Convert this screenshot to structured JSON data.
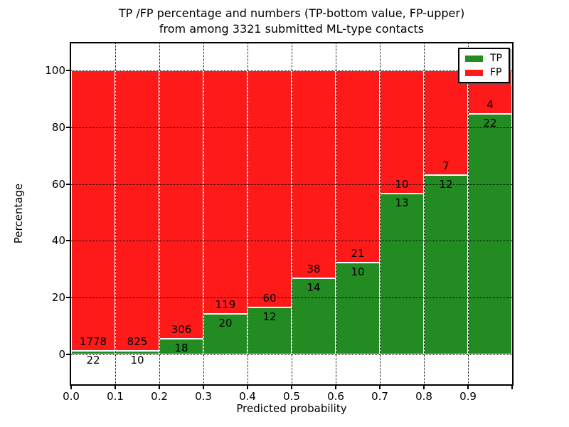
{
  "title": {
    "line1": "TP /FP percentage and numbers (TP-bottom value, FP-upper)",
    "line2": "from among 3321 submitted ML-type contacts"
  },
  "axes": {
    "xlabel": "Predicted probability",
    "ylabel": "Percentage",
    "xtick_labels": [
      "0.0",
      "0.1",
      "0.2",
      "0.3",
      "0.4",
      "0.5",
      "0.6",
      "0.7",
      "0.8",
      "0.9"
    ],
    "ytick_labels": [
      "0",
      "20",
      "40",
      "60",
      "80",
      "100"
    ]
  },
  "legend": {
    "items": [
      {
        "label": "TP",
        "color": "#228b22"
      },
      {
        "label": "FP",
        "color": "#ff1a1a"
      }
    ]
  },
  "chart_data": {
    "type": "bar",
    "stacked": true,
    "title": "TP /FP percentage and numbers (TP-bottom value, FP-upper) from among 3321 submitted ML-type contacts",
    "xlabel": "Predicted probability",
    "ylabel": "Percentage",
    "total_contacts": 3321,
    "bin_width": 0.1,
    "bin_edges": [
      0.0,
      0.1,
      0.2,
      0.3,
      0.4,
      0.5,
      0.6,
      0.7,
      0.8,
      0.9,
      1.0
    ],
    "xticks": [
      0.0,
      0.1,
      0.2,
      0.3,
      0.4,
      0.5,
      0.6,
      0.7,
      0.8,
      0.9
    ],
    "yticks": [
      0,
      20,
      40,
      60,
      80,
      100
    ],
    "ylim": [
      -10.5,
      109.5
    ],
    "bar_total_pct": 100,
    "grid": true,
    "grid_style": "dotted",
    "legend_position": "upper right",
    "series": [
      {
        "name": "TP",
        "color": "#228b22",
        "counts": [
          22,
          10,
          18,
          20,
          12,
          14,
          10,
          13,
          12,
          22
        ]
      },
      {
        "name": "FP",
        "color": "#ff1a1a",
        "counts": [
          1778,
          825,
          306,
          119,
          60,
          38,
          21,
          10,
          7,
          4
        ]
      }
    ],
    "tp_percentages": [
      1.22,
      1.2,
      5.56,
      14.39,
      16.67,
      26.92,
      32.26,
      56.52,
      63.16,
      84.62
    ]
  }
}
